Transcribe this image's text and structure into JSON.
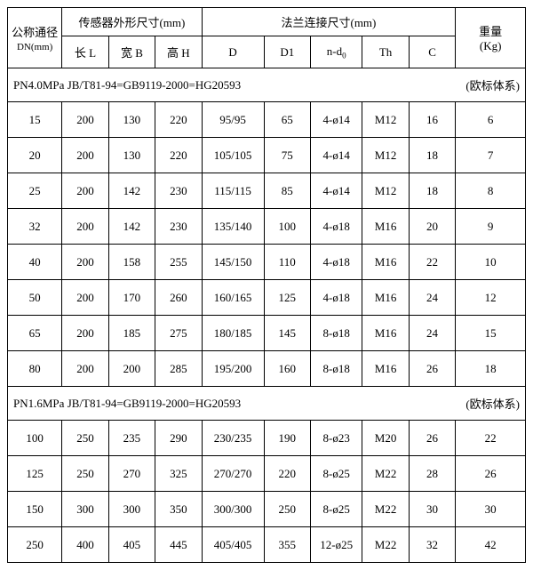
{
  "header": {
    "dn_label": "公称通径",
    "dn_sub": "DN(mm)",
    "sensor_group": "传感器外形尺寸(mm)",
    "flange_group": "法兰连接尺寸(mm)",
    "weight_label": "重量",
    "weight_unit": "(Kg)",
    "cols": {
      "L": "长 L",
      "B": "宽 B",
      "H": "高 H",
      "D": "D",
      "D1": "D1",
      "nd0": "n-d",
      "nd0_sub": "0",
      "Th": "Th",
      "C": "C"
    }
  },
  "sections": [
    {
      "left": "PN4.0MPa",
      "mid": "JB/T81-94=GB9119-2000=HG20593",
      "right": "(欧标体系)",
      "rows": [
        {
          "dn": "15",
          "L": "200",
          "B": "130",
          "H": "220",
          "D": "95/95",
          "D1": "65",
          "nd0": "4-ø14",
          "Th": "M12",
          "C": "16",
          "W": "6"
        },
        {
          "dn": "20",
          "L": "200",
          "B": "130",
          "H": "220",
          "D": "105/105",
          "D1": "75",
          "nd0": "4-ø14",
          "Th": "M12",
          "C": "18",
          "W": "7"
        },
        {
          "dn": "25",
          "L": "200",
          "B": "142",
          "H": "230",
          "D": "115/115",
          "D1": "85",
          "nd0": "4-ø14",
          "Th": "M12",
          "C": "18",
          "W": "8"
        },
        {
          "dn": "32",
          "L": "200",
          "B": "142",
          "H": "230",
          "D": "135/140",
          "D1": "100",
          "nd0": "4-ø18",
          "Th": "M16",
          "C": "20",
          "W": "9"
        },
        {
          "dn": "40",
          "L": "200",
          "B": "158",
          "H": "255",
          "D": "145/150",
          "D1": "110",
          "nd0": "4-ø18",
          "Th": "M16",
          "C": "22",
          "W": "10"
        },
        {
          "dn": "50",
          "L": "200",
          "B": "170",
          "H": "260",
          "D": "160/165",
          "D1": "125",
          "nd0": "4-ø18",
          "Th": "M16",
          "C": "24",
          "W": "12"
        },
        {
          "dn": "65",
          "L": "200",
          "B": "185",
          "H": "275",
          "D": "180/185",
          "D1": "145",
          "nd0": "8-ø18",
          "Th": "M16",
          "C": "24",
          "W": "15"
        },
        {
          "dn": "80",
          "L": "200",
          "B": "200",
          "H": "285",
          "D": "195/200",
          "D1": "160",
          "nd0": "8-ø18",
          "Th": "M16",
          "C": "26",
          "W": "18"
        }
      ]
    },
    {
      "left": "PN1.6MPa",
      "mid": "JB/T81-94=GB9119-2000=HG20593",
      "right": "(欧标体系)",
      "rows": [
        {
          "dn": "100",
          "L": "250",
          "B": "235",
          "H": "290",
          "D": "230/235",
          "D1": "190",
          "nd0": "8-ø23",
          "Th": "M20",
          "C": "26",
          "W": "22"
        },
        {
          "dn": "125",
          "L": "250",
          "B": "270",
          "H": "325",
          "D": "270/270",
          "D1": "220",
          "nd0": "8-ø25",
          "Th": "M22",
          "C": "28",
          "W": "26"
        },
        {
          "dn": "150",
          "L": "300",
          "B": "300",
          "H": "350",
          "D": "300/300",
          "D1": "250",
          "nd0": "8-ø25",
          "Th": "M22",
          "C": "30",
          "W": "30"
        },
        {
          "dn": "250",
          "L": "400",
          "B": "405",
          "H": "445",
          "D": "405/405",
          "D1": "355",
          "nd0": "12-ø25",
          "Th": "M22",
          "C": "32",
          "W": "42"
        }
      ]
    }
  ],
  "colors": {
    "border": "#000000",
    "bg": "#ffffff",
    "text": "#000000"
  }
}
